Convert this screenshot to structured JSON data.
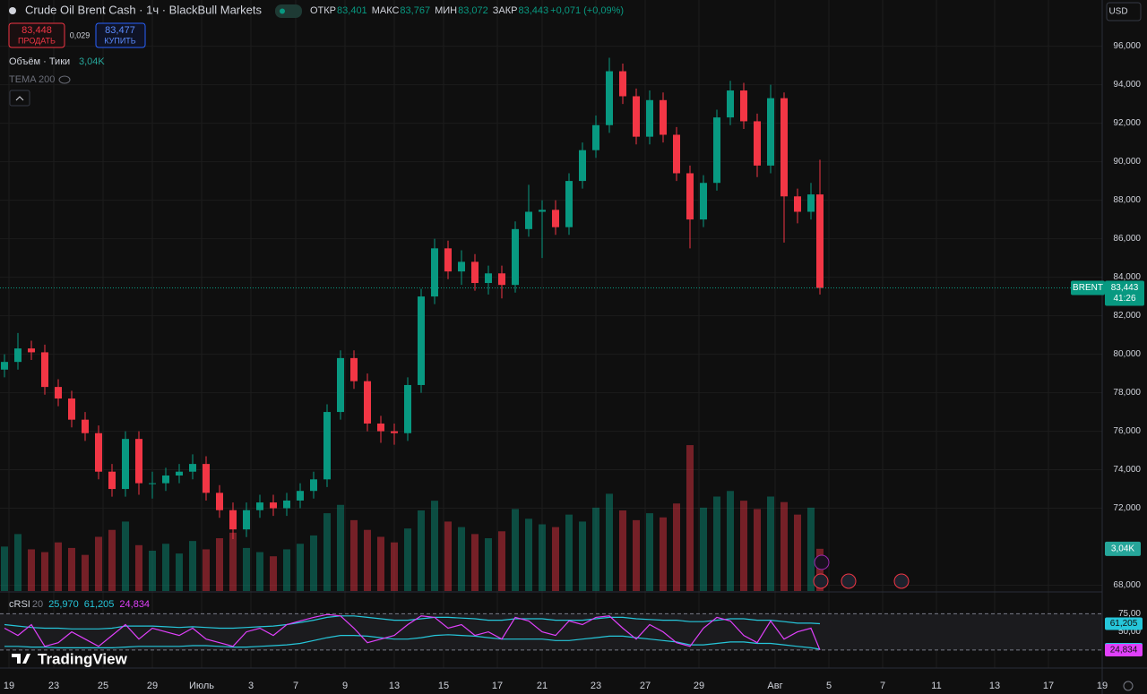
{
  "header": {
    "symbol": "Crude Oil Brent Cash · 1ч · BlackBull Markets",
    "ohlc": [
      {
        "label": "ОТКР",
        "value": "83,401"
      },
      {
        "label": "МАКС",
        "value": "83,767"
      },
      {
        "label": "МИН",
        "value": "83,072"
      },
      {
        "label": "ЗАКР",
        "value": "83,443"
      }
    ],
    "change": "+0,071 (+0,09%)",
    "sell_price": "83,448",
    "sell_label": "ПРОДАТЬ",
    "spread": "0,029",
    "buy_price": "83,477",
    "buy_label": "КУПИТЬ",
    "volume_label": "Объём · Тики",
    "volume_value": "3,04K",
    "indicator": "TEMA 200",
    "currency": "USD",
    "price_tag": "BRENT",
    "countdown": "41:26",
    "logo": "TradingView"
  },
  "chart_data": {
    "type": "candlestick",
    "up_color": "#089981",
    "down_color": "#f23645",
    "grid": true,
    "x": [
      1,
      4,
      7,
      10,
      13,
      16,
      19,
      22,
      25,
      28,
      31,
      34,
      37,
      40,
      43,
      46,
      49,
      52,
      55,
      58,
      61,
      64,
      67,
      70,
      73,
      76,
      79,
      82,
      85,
      88,
      91,
      94,
      97,
      100,
      103,
      106,
      109,
      112,
      115,
      118,
      121,
      124,
      127,
      130,
      133,
      136,
      139,
      142,
      145,
      148,
      151,
      154,
      157,
      160,
      163,
      166,
      169,
      172,
      175,
      178,
      181,
      183
    ],
    "open": [
      79.2,
      79.6,
      80.3,
      80.1,
      78.3,
      77.7,
      76.6,
      75.9,
      73.9,
      73.0,
      75.6,
      73.3,
      73.3,
      73.7,
      73.9,
      74.3,
      72.8,
      71.9,
      70.9,
      71.9,
      72.3,
      72.0,
      72.4,
      72.9,
      73.5,
      77.0,
      79.8,
      78.6,
      76.4,
      76.0,
      75.9,
      78.4,
      83.0,
      85.5,
      84.3,
      84.8,
      83.7,
      84.2,
      83.6,
      86.5,
      87.4,
      87.5,
      86.6,
      89.0,
      90.6,
      91.9,
      94.7,
      93.4,
      91.3,
      93.2,
      91.4,
      89.4,
      87.0,
      88.9,
      92.3,
      93.7,
      92.1,
      89.8,
      93.3,
      88.2,
      87.4,
      88.3
    ],
    "high": [
      80.0,
      81.1,
      80.7,
      80.5,
      78.7,
      78.1,
      77.0,
      76.3,
      74.3,
      76.0,
      76.0,
      73.9,
      74.1,
      74.3,
      74.8,
      74.7,
      73.2,
      72.3,
      72.3,
      72.7,
      72.7,
      72.8,
      73.3,
      73.9,
      77.4,
      80.2,
      80.2,
      79.0,
      76.8,
      76.4,
      78.8,
      83.4,
      86.0,
      85.9,
      85.4,
      85.2,
      84.6,
      84.6,
      86.9,
      88.8,
      88.0,
      88.0,
      89.4,
      91.0,
      92.4,
      95.4,
      95.1,
      93.8,
      93.7,
      93.6,
      91.8,
      89.8,
      89.3,
      92.7,
      94.2,
      94.1,
      92.5,
      94.0,
      93.6,
      88.6,
      88.9,
      90.1
    ],
    "low": [
      78.8,
      79.2,
      79.7,
      77.9,
      77.3,
      76.2,
      75.5,
      73.5,
      72.6,
      72.6,
      72.7,
      72.5,
      72.9,
      73.3,
      73.5,
      72.4,
      71.5,
      70.4,
      70.5,
      71.5,
      71.6,
      71.6,
      72.0,
      72.5,
      73.1,
      76.6,
      78.2,
      76.0,
      75.4,
      75.3,
      75.5,
      78.0,
      82.6,
      83.9,
      83.6,
      83.3,
      83.1,
      82.9,
      83.2,
      86.1,
      85.0,
      86.2,
      86.2,
      88.6,
      90.2,
      91.5,
      93.0,
      90.9,
      90.9,
      91.0,
      89.0,
      85.5,
      86.6,
      88.5,
      91.9,
      91.7,
      89.2,
      89.4,
      85.8,
      86.8,
      87.0,
      83.1
    ],
    "close": [
      79.6,
      80.3,
      80.1,
      78.3,
      77.7,
      76.6,
      75.9,
      73.9,
      73.0,
      75.6,
      73.3,
      73.3,
      73.7,
      73.9,
      74.3,
      72.8,
      71.9,
      70.9,
      71.9,
      72.3,
      72.0,
      72.4,
      72.9,
      73.5,
      77.0,
      79.8,
      78.6,
      76.4,
      76.0,
      75.9,
      78.4,
      83.0,
      85.5,
      84.3,
      84.8,
      83.7,
      84.2,
      83.6,
      86.5,
      87.4,
      87.5,
      86.6,
      89.0,
      90.6,
      91.9,
      94.7,
      93.4,
      91.3,
      93.2,
      91.4,
      89.4,
      87.0,
      88.9,
      92.3,
      93.7,
      92.1,
      89.8,
      93.3,
      88.2,
      87.4,
      88.3,
      83.443
    ],
    "xlim": [
      0,
      246
    ],
    "xticks": [
      {
        "value": 2,
        "label": "19"
      },
      {
        "value": 12,
        "label": "23"
      },
      {
        "value": 23,
        "label": "25"
      },
      {
        "value": 34,
        "label": "29"
      },
      {
        "value": 45,
        "label": "Июль"
      },
      {
        "value": 56,
        "label": "3"
      },
      {
        "value": 66,
        "label": "7"
      },
      {
        "value": 77,
        "label": "9"
      },
      {
        "value": 88,
        "label": "13"
      },
      {
        "value": 99,
        "label": "15"
      },
      {
        "value": 111,
        "label": "17"
      },
      {
        "value": 121,
        "label": "21"
      },
      {
        "value": 133,
        "label": "23"
      },
      {
        "value": 144,
        "label": "27"
      },
      {
        "value": 156,
        "label": "29"
      },
      {
        "value": 173,
        "label": "Авг"
      },
      {
        "value": 185,
        "label": "5"
      },
      {
        "value": 197,
        "label": "7"
      },
      {
        "value": 209,
        "label": "11"
      },
      {
        "value": 222,
        "label": "13"
      },
      {
        "value": 234,
        "label": "17"
      },
      {
        "value": 246,
        "label": "19"
      }
    ],
    "ylim": [
      67.7,
      98.4
    ],
    "yticks": [
      {
        "value": 96,
        "label": "96,000"
      },
      {
        "value": 94,
        "label": "94,000"
      },
      {
        "value": 92,
        "label": "92,000"
      },
      {
        "value": 90,
        "label": "90,000"
      },
      {
        "value": 88,
        "label": "88,000"
      },
      {
        "value": 86,
        "label": "86,000"
      },
      {
        "value": 84,
        "label": "84,000"
      },
      {
        "value": 82,
        "label": "82,000"
      },
      {
        "value": 80,
        "label": "80,000"
      },
      {
        "value": 78,
        "label": "78,000"
      },
      {
        "value": 76,
        "label": "76,000"
      },
      {
        "value": 74,
        "label": "74,000"
      },
      {
        "value": 72,
        "label": "72,000"
      },
      {
        "value": 68,
        "label": "68,000"
      }
    ],
    "volume": {
      "ylim": [
        0,
        11.6
      ],
      "values": [
        3.2,
        4.1,
        3.0,
        2.8,
        3.5,
        3.1,
        2.6,
        3.9,
        4.4,
        5.0,
        3.3,
        2.9,
        3.4,
        2.7,
        3.6,
        3.0,
        3.8,
        4.2,
        3.1,
        2.8,
        2.5,
        3.0,
        3.4,
        4.0,
        5.6,
        6.2,
        5.1,
        4.4,
        3.9,
        3.5,
        4.5,
        5.8,
        6.5,
        5.0,
        4.6,
        4.1,
        3.8,
        4.3,
        5.9,
        5.2,
        4.8,
        4.6,
        5.5,
        5.0,
        6.0,
        7.0,
        5.8,
        5.1,
        5.6,
        5.3,
        6.3,
        10.5,
        6.0,
        6.8,
        7.2,
        6.5,
        5.9,
        6.8,
        6.4,
        5.5,
        6.0,
        3.04
      ]
    },
    "rsi": {
      "name": "cRSI",
      "length": "20",
      "ylim": [
        1.3,
        102.6
      ],
      "levels": [
        75,
        25
      ],
      "yticks": [
        {
          "value": 75,
          "label": "75,00"
        },
        {
          "value": 50,
          "label": "50,00"
        }
      ],
      "series": [
        {
          "color": "#26c6da",
          "last_label": "25,970",
          "values": [
            30,
            30,
            29,
            29,
            28,
            28,
            28,
            28,
            28,
            29,
            30,
            30,
            30,
            30,
            31,
            31,
            30,
            29,
            29,
            30,
            31,
            32,
            34,
            38,
            42,
            45,
            45,
            44,
            42,
            40,
            40,
            42,
            45,
            46,
            45,
            44,
            42,
            40,
            40,
            40,
            40,
            38,
            38,
            40,
            42,
            44,
            44,
            42,
            40,
            38,
            36,
            32,
            32,
            34,
            36,
            36,
            34,
            34,
            32,
            30,
            28,
            25.97
          ]
        },
        {
          "color": "#26c6da",
          "last_label": "61,205",
          "values": [
            60,
            58,
            56,
            55,
            55,
            54,
            54,
            54,
            55,
            58,
            58,
            58,
            57,
            56,
            57,
            56,
            55,
            55,
            56,
            57,
            58,
            60,
            63,
            66,
            70,
            72,
            72,
            70,
            68,
            66,
            66,
            68,
            70,
            70,
            69,
            68,
            66,
            66,
            68,
            68,
            68,
            66,
            66,
            66,
            68,
            70,
            70,
            68,
            67,
            66,
            66,
            64,
            64,
            66,
            68,
            68,
            66,
            66,
            64,
            62,
            62,
            61.205
          ]
        },
        {
          "color": "#e040fb",
          "last_label": "24,834",
          "values": [
            55,
            45,
            60,
            30,
            35,
            50,
            40,
            30,
            45,
            60,
            40,
            55,
            50,
            45,
            55,
            40,
            35,
            30,
            50,
            55,
            45,
            60,
            65,
            70,
            74,
            72,
            55,
            35,
            40,
            45,
            60,
            72,
            70,
            55,
            60,
            45,
            50,
            40,
            70,
            65,
            50,
            45,
            65,
            60,
            70,
            72,
            55,
            40,
            60,
            50,
            35,
            30,
            55,
            70,
            65,
            45,
            35,
            65,
            40,
            50,
            55,
            24.834
          ]
        }
      ]
    }
  }
}
